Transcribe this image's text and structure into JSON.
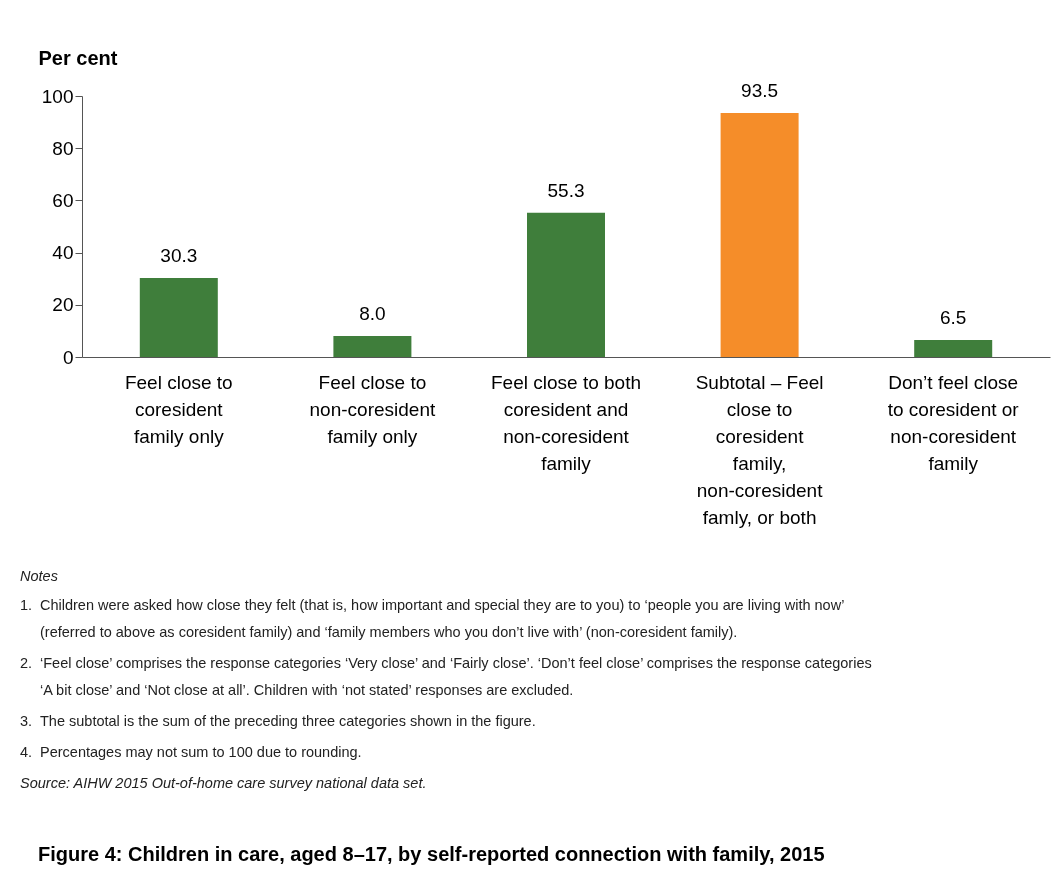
{
  "chart_data": {
    "type": "bar",
    "title": "Figure 4: Children in care, aged 8–17, by self-reported connection with family, 2015",
    "ylabel": "Per cent",
    "categories": [
      "Feel close to\ncoresident\nfamily only",
      "Feel close to\nnon-coresident\nfamily only",
      "Feel close to both\ncoresident and\nnon-coresident\nfamily",
      "Subtotal – Feel\nclose to\ncoresident\nfamily,\nnon-coresident\nfamly, or both",
      "Don’t feel close\nto coresident or\nnon-coresident\nfamily"
    ],
    "values": [
      30.3,
      8.0,
      55.3,
      93.5,
      6.5
    ],
    "colors": [
      "#3f7e3b",
      "#3f7e3b",
      "#3f7e3b",
      "#f58d29",
      "#3f7e3b"
    ],
    "ylim": [
      0,
      100
    ],
    "yticks": [
      0,
      20,
      40,
      60,
      80,
      100
    ],
    "value_labels": [
      "30.3",
      "8.0",
      "55.3",
      "93.5",
      "6.5"
    ],
    "grid": false,
    "annotations": [
      "Notes",
      "1.\tChildren were asked how close they felt (that is, how important and special they are to you) to ‘people you are living with now’\n(referred to above as coresident family) and ‘family members who you don’t live with’ (non-coresident family).",
      "2.\t‘Feel close’ comprises the response categories ‘Very close’ and ‘Fairly close’. ‘Don’t feel close’ comprises the response categories\n‘A bit close’ and ‘Not close at all’. Children with ‘not stated’ responses are excluded.",
      "3.\tThe subtotal is the sum of the preceding three categories shown in the figure.",
      "4.\tPercentages may not sum to 100 due to rounding.",
      "Source: AIHW 2015 Out-of-home care survey national data set."
    ]
  }
}
